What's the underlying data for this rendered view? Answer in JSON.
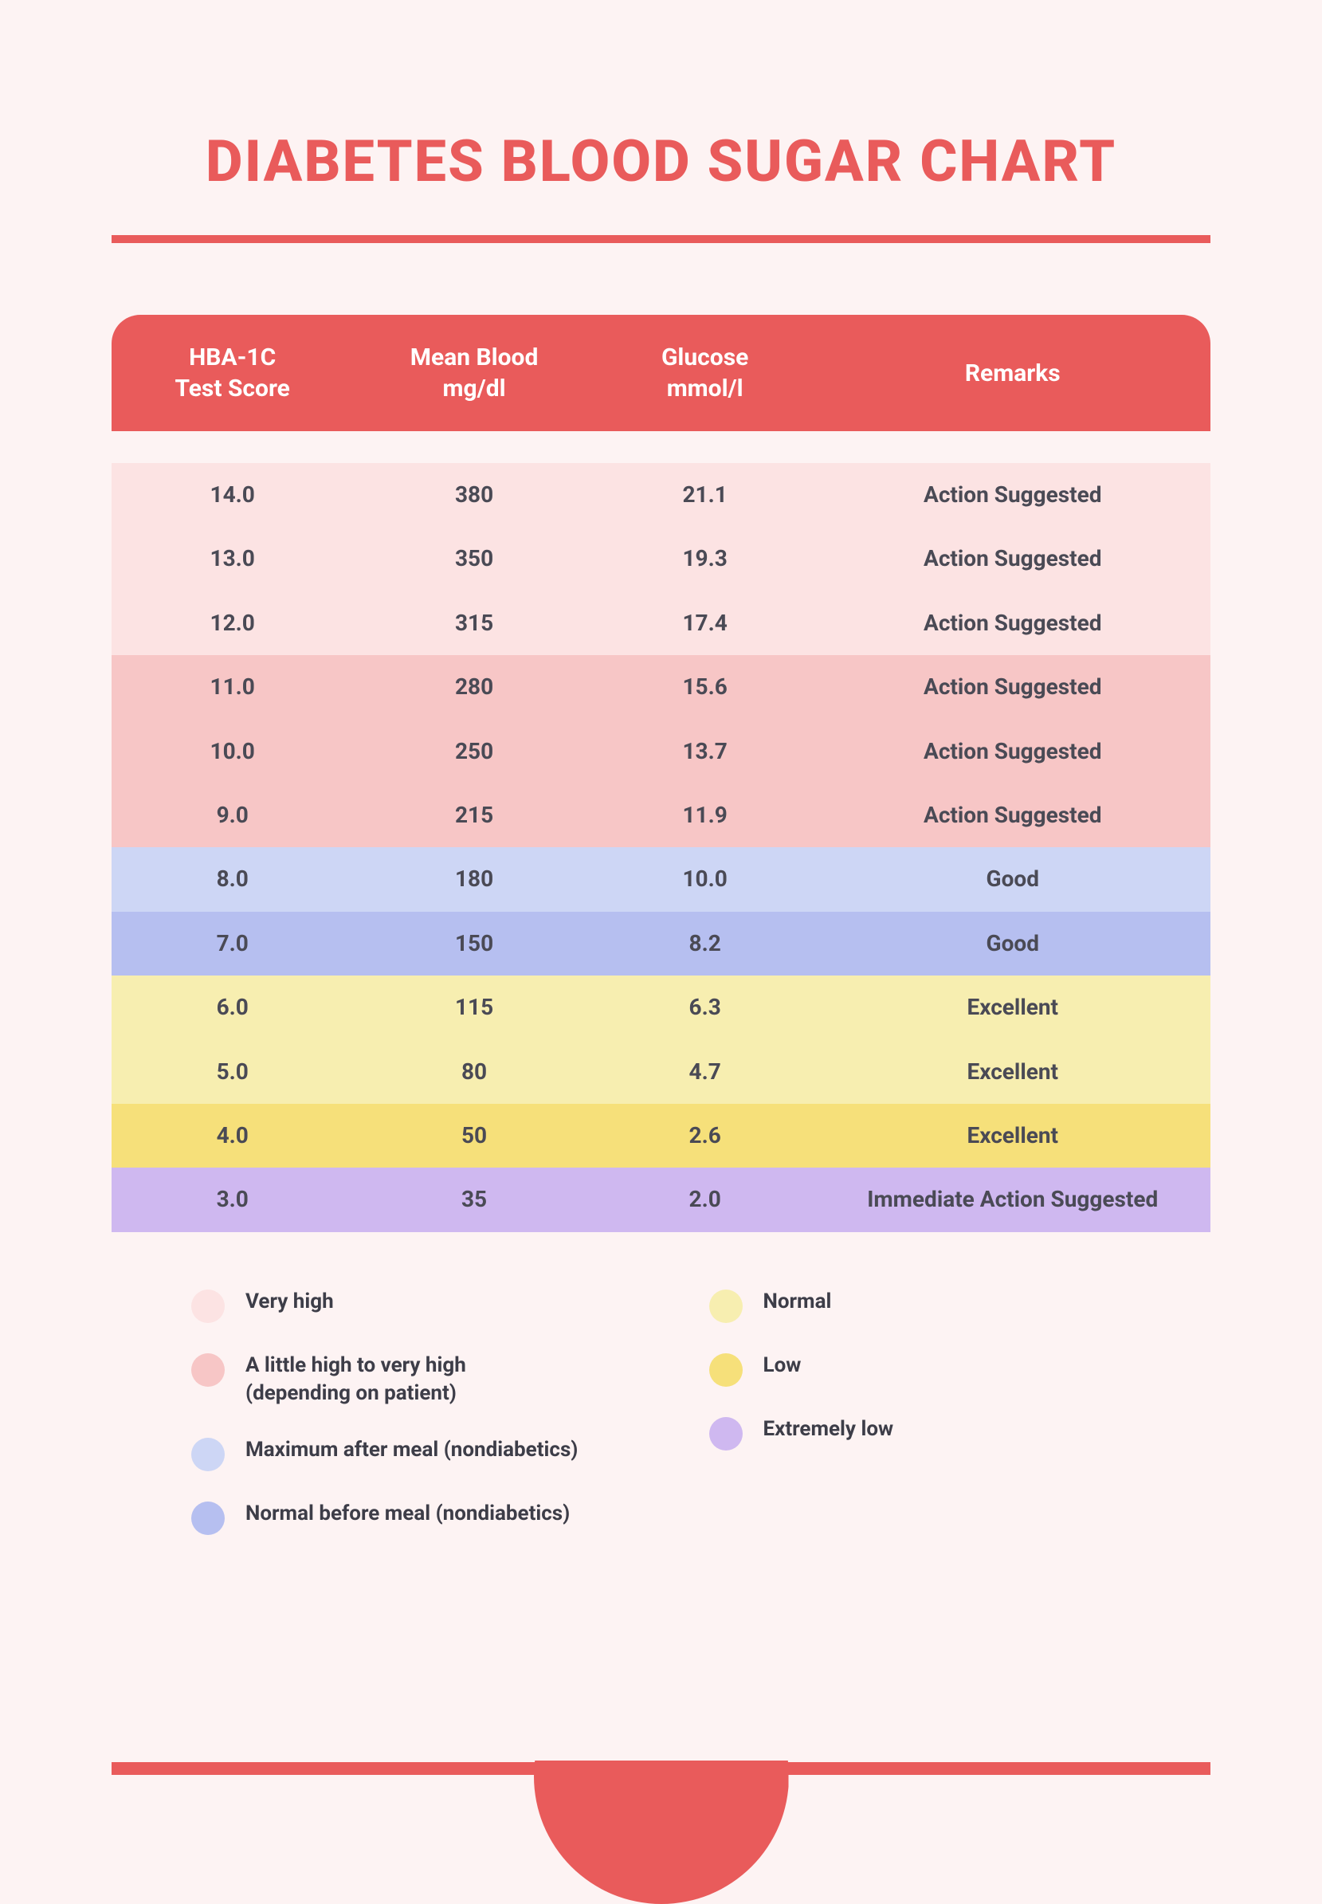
{
  "colors": {
    "page_bg": "#fdf3f3",
    "accent": "#e95b5b",
    "title": "#e95b5b",
    "rule": "#e95b5b",
    "header_bg": "#e95b5b",
    "header_text": "#ffffff",
    "row_text": "#4a4a55",
    "band_very_high": "#fce3e3",
    "band_high": "#f7c6c6",
    "band_max_meal": "#cdd6f5",
    "band_normal_meal": "#b6bff0",
    "band_normal": "#f7eeb0",
    "band_low": "#f6e07a",
    "band_extreme_low": "#cfb8f0"
  },
  "title": "DIABETES BLOOD SUGAR CHART",
  "title_fontsize": 72,
  "table": {
    "header_fontsize": 30,
    "row_fontsize": 28,
    "columns": [
      "HBA-1C\nTest Score",
      "Mean Blood\nmg/dl",
      "Glucose\nmmol/l",
      "Remarks"
    ],
    "rows": [
      {
        "cells": [
          "14.0",
          "380",
          "21.1",
          "Action Suggested"
        ],
        "band": "very_high"
      },
      {
        "cells": [
          "13.0",
          "350",
          "19.3",
          "Action Suggested"
        ],
        "band": "very_high"
      },
      {
        "cells": [
          "12.0",
          "315",
          "17.4",
          "Action Suggested"
        ],
        "band": "very_high"
      },
      {
        "cells": [
          "11.0",
          "280",
          "15.6",
          "Action Suggested"
        ],
        "band": "high"
      },
      {
        "cells": [
          "10.0",
          "250",
          "13.7",
          "Action Suggested"
        ],
        "band": "high"
      },
      {
        "cells": [
          "9.0",
          "215",
          "11.9",
          "Action Suggested"
        ],
        "band": "high"
      },
      {
        "cells": [
          "8.0",
          "180",
          "10.0",
          "Good"
        ],
        "band": "max_meal"
      },
      {
        "cells": [
          "7.0",
          "150",
          "8.2",
          "Good"
        ],
        "band": "normal_meal"
      },
      {
        "cells": [
          "6.0",
          "115",
          "6.3",
          "Excellent"
        ],
        "band": "normal"
      },
      {
        "cells": [
          "5.0",
          "80",
          "4.7",
          "Excellent"
        ],
        "band": "normal"
      },
      {
        "cells": [
          "4.0",
          "50",
          "2.6",
          "Excellent"
        ],
        "band": "low"
      },
      {
        "cells": [
          "3.0",
          "35",
          "2.0",
          "Immediate Action Suggested"
        ],
        "band": "extreme_low"
      }
    ]
  },
  "legend": {
    "fontsize": 26,
    "left": [
      {
        "swatch": "#fce3e3",
        "label": "Very high"
      },
      {
        "swatch": "#f7c6c6",
        "label": "A little high to very high\n(depending on patient)"
      },
      {
        "swatch": "#cdd6f5",
        "label": "Maximum after meal (nondiabetics)"
      },
      {
        "swatch": "#b6bff0",
        "label": "Normal before meal (nondiabetics)"
      }
    ],
    "right": [
      {
        "swatch": "#f7eeb0",
        "label": "Normal"
      },
      {
        "swatch": "#f6e07a",
        "label": "Low"
      },
      {
        "swatch": "#cfb8f0",
        "label": "Extremely low"
      }
    ]
  }
}
